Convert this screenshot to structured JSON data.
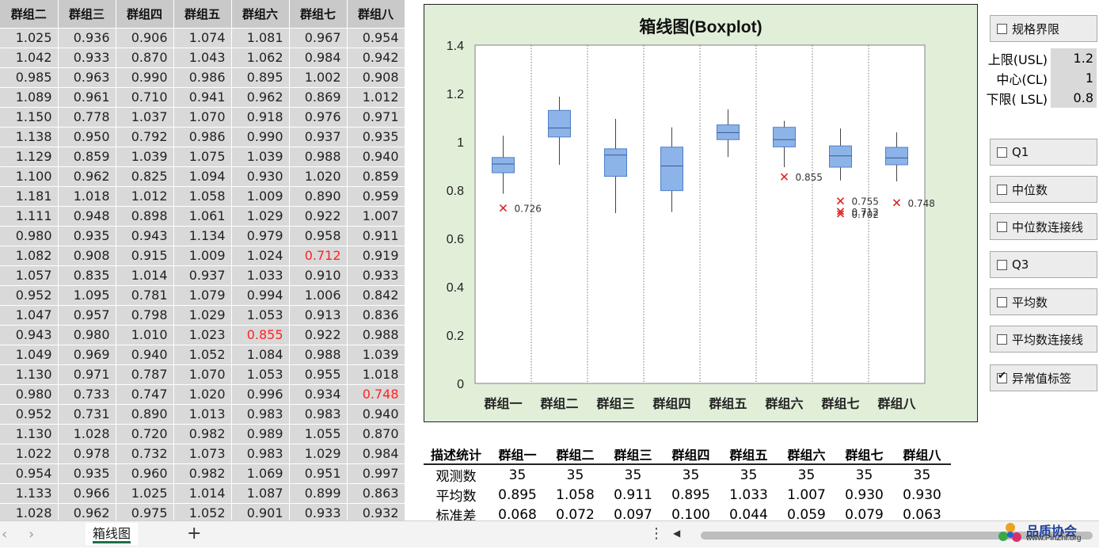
{
  "table": {
    "headers": [
      "群组二",
      "群组三",
      "群组四",
      "群组五",
      "群组六",
      "群组七",
      "群组八"
    ],
    "rows": [
      [
        "1.025",
        "0.936",
        "0.906",
        "1.074",
        "1.081",
        "0.967",
        "0.954"
      ],
      [
        "1.042",
        "0.933",
        "0.870",
        "1.043",
        "1.062",
        "0.984",
        "0.942"
      ],
      [
        "0.985",
        "0.963",
        "0.990",
        "0.986",
        "0.895",
        "1.002",
        "0.908"
      ],
      [
        "1.089",
        "0.961",
        "0.710",
        "0.941",
        "0.962",
        "0.869",
        "1.012"
      ],
      [
        "1.150",
        "0.778",
        "1.037",
        "1.070",
        "0.918",
        "0.976",
        "0.971"
      ],
      [
        "1.138",
        "0.950",
        "0.792",
        "0.986",
        "0.990",
        "0.937",
        "0.935"
      ],
      [
        "1.129",
        "0.859",
        "1.039",
        "1.075",
        "1.039",
        "0.988",
        "0.940"
      ],
      [
        "1.100",
        "0.962",
        "0.825",
        "1.094",
        "0.930",
        "1.020",
        "0.859"
      ],
      [
        "1.181",
        "1.018",
        "1.012",
        "1.058",
        "1.009",
        "0.890",
        "0.959"
      ],
      [
        "1.111",
        "0.948",
        "0.898",
        "1.061",
        "1.029",
        "0.922",
        "1.007"
      ],
      [
        "0.980",
        "0.935",
        "0.943",
        "1.134",
        "0.979",
        "0.958",
        "0.911"
      ],
      [
        "1.082",
        "0.908",
        "0.915",
        "1.009",
        "1.024",
        "0.712",
        "0.919"
      ],
      [
        "1.057",
        "0.835",
        "1.014",
        "0.937",
        "1.033",
        "0.910",
        "0.933"
      ],
      [
        "0.952",
        "1.095",
        "0.781",
        "1.079",
        "0.994",
        "1.006",
        "0.842"
      ],
      [
        "1.047",
        "0.957",
        "0.798",
        "1.029",
        "1.053",
        "0.913",
        "0.836"
      ],
      [
        "0.943",
        "0.980",
        "1.010",
        "1.023",
        "0.855",
        "0.922",
        "0.988"
      ],
      [
        "1.049",
        "0.969",
        "0.940",
        "1.052",
        "1.084",
        "0.988",
        "1.039"
      ],
      [
        "1.130",
        "0.971",
        "0.787",
        "1.070",
        "1.053",
        "0.955",
        "1.018"
      ],
      [
        "0.980",
        "0.733",
        "0.747",
        "1.020",
        "0.996",
        "0.934",
        "0.748"
      ],
      [
        "0.952",
        "0.731",
        "0.890",
        "1.013",
        "0.983",
        "0.983",
        "0.940"
      ],
      [
        "1.130",
        "1.028",
        "0.720",
        "0.982",
        "0.989",
        "1.055",
        "0.870"
      ],
      [
        "1.022",
        "0.978",
        "0.732",
        "1.073",
        "0.983",
        "1.029",
        "0.984"
      ],
      [
        "0.954",
        "0.935",
        "0.960",
        "0.982",
        "1.069",
        "0.951",
        "0.997"
      ],
      [
        "1.133",
        "0.966",
        "1.025",
        "1.014",
        "1.087",
        "0.899",
        "0.863"
      ],
      [
        "1.028",
        "0.962",
        "0.975",
        "1.052",
        "0.901",
        "0.933",
        "0.932"
      ]
    ],
    "red_cells": [
      [
        11,
        5
      ],
      [
        15,
        4
      ],
      [
        18,
        6
      ]
    ]
  },
  "chart_data": {
    "type": "boxplot",
    "title": "箱线图(Boxplot)",
    "categories": [
      "群组一",
      "群组二",
      "群组三",
      "群组四",
      "群组五",
      "群组六",
      "群组七",
      "群组八"
    ],
    "ylim": [
      0,
      1.4
    ],
    "yticks": [
      "0",
      "0.2",
      "0.4",
      "0.6",
      "0.8",
      "1",
      "1.2",
      "1.4"
    ],
    "yticks_values": [
      0,
      0.2,
      0.4,
      0.6,
      0.8,
      1,
      1.2,
      1.4
    ],
    "boxes": [
      {
        "min": 0.785,
        "q1": 0.872,
        "median": 0.908,
        "q3": 0.935,
        "max": 1.025
      },
      {
        "min": 0.905,
        "q1": 1.02,
        "median": 1.057,
        "q3": 1.13,
        "max": 1.187
      },
      {
        "min": 0.705,
        "q1": 0.857,
        "median": 0.945,
        "q3": 0.971,
        "max": 1.095
      },
      {
        "min": 0.71,
        "q1": 0.798,
        "median": 0.9,
        "q3": 0.978,
        "max": 1.06
      },
      {
        "min": 0.937,
        "q1": 1.009,
        "median": 1.038,
        "q3": 1.07,
        "max": 1.134
      },
      {
        "min": 0.895,
        "q1": 0.979,
        "median": 1.009,
        "q3": 1.06,
        "max": 1.087
      },
      {
        "min": 0.84,
        "q1": 0.895,
        "median": 0.942,
        "q3": 0.983,
        "max": 1.055
      },
      {
        "min": 0.836,
        "q1": 0.905,
        "median": 0.933,
        "q3": 0.977,
        "max": 1.039
      }
    ],
    "outliers": [
      {
        "group": 0,
        "value": 0.726,
        "label": "0.726"
      },
      {
        "group": 5,
        "value": 0.855,
        "label": "0.855"
      },
      {
        "group": 6,
        "value": 0.755,
        "label": "0.755"
      },
      {
        "group": 6,
        "value": 0.712,
        "label": "0.712"
      },
      {
        "group": 6,
        "value": 0.702,
        "label": "0.702"
      },
      {
        "group": 7,
        "value": 0.748,
        "label": "0.748"
      }
    ],
    "grid": false,
    "colors": {
      "box_fill": "#8db4e8",
      "box_stroke": "#4f7fc8",
      "outlier": "#e02020",
      "panel_bg": "#e1efd9"
    }
  },
  "controls": {
    "spec_limits": {
      "label": "规格界限",
      "checked": false
    },
    "usl": {
      "label": "上限(USL)",
      "value": "1.2"
    },
    "cl": {
      "label": "中心(CL)",
      "value": "1"
    },
    "lsl": {
      "label": "下限( LSL)",
      "value": "0.8"
    },
    "q1": {
      "label": "Q1",
      "checked": false
    },
    "median": {
      "label": "中位数",
      "checked": false
    },
    "median_line": {
      "label": "中位数连接线",
      "checked": false
    },
    "q3": {
      "label": "Q3",
      "checked": false
    },
    "mean": {
      "label": "平均数",
      "checked": false
    },
    "mean_line": {
      "label": "平均数连接线",
      "checked": false
    },
    "outlier_labels": {
      "label": "异常值标签",
      "checked": true
    }
  },
  "stats": {
    "headers": [
      "描述统计",
      "群组一",
      "群组二",
      "群组三",
      "群组四",
      "群组五",
      "群组六",
      "群组七",
      "群组八"
    ],
    "rows": [
      [
        "观测数",
        "35",
        "35",
        "35",
        "35",
        "35",
        "35",
        "35",
        "35"
      ],
      [
        "平均数",
        "0.895",
        "1.058",
        "0.911",
        "0.895",
        "1.033",
        "1.007",
        "0.930",
        "0.930"
      ],
      [
        "标准差",
        "0.068",
        "0.072",
        "0.097",
        "0.100",
        "0.044",
        "0.059",
        "0.079",
        "0.063"
      ]
    ]
  },
  "footer": {
    "nav_left": "‹",
    "nav_right": "›",
    "sheet_tab": "箱线图",
    "add_sheet": "+",
    "more": "⋮",
    "scroll_left": "◀",
    "logo_main": "品质协会",
    "logo_sub": "www.PinZhi.org"
  }
}
